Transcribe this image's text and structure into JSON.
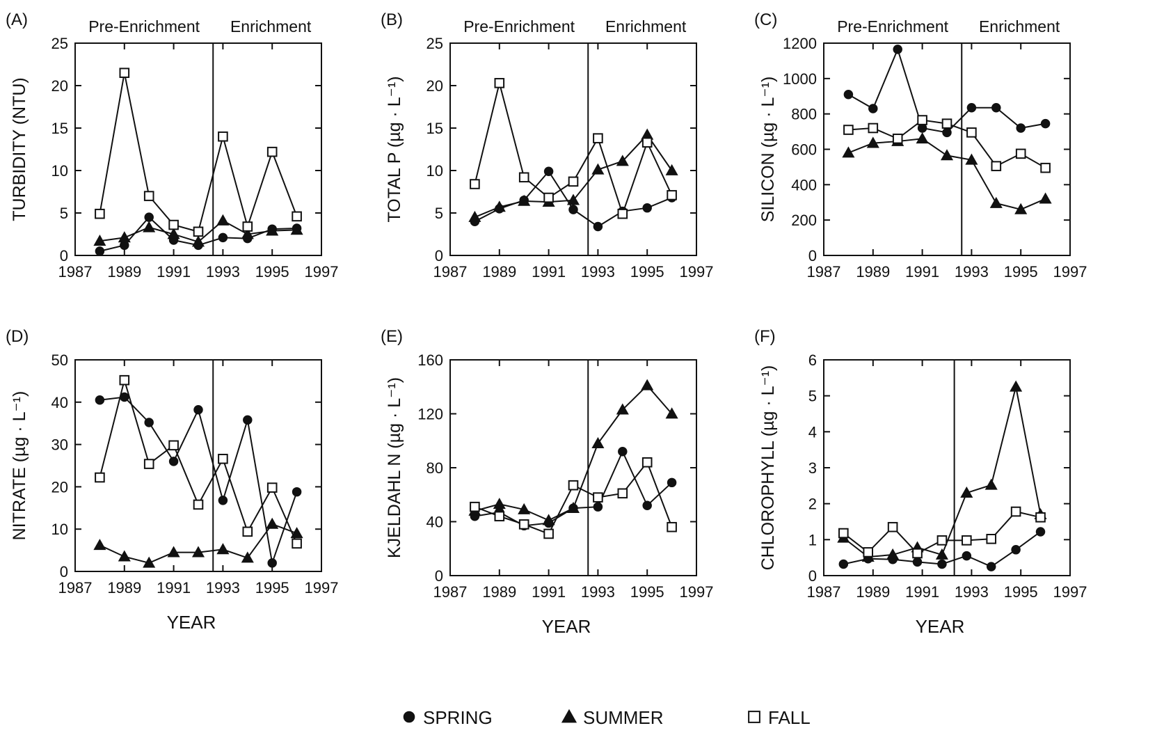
{
  "chart_data": [
    {
      "panel": "(A)",
      "type": "line",
      "ylabel": "TURBIDITY (NTU)",
      "xlabel": "",
      "xlim": [
        1987,
        1997
      ],
      "xticks": [
        "1987",
        "1989",
        "1991",
        "1993",
        "1995",
        "1997"
      ],
      "ylim": [
        0,
        25
      ],
      "yticks": [
        "0",
        "5",
        "10",
        "15",
        "20",
        "25"
      ],
      "divider_year": 1992.6,
      "period_labels": [
        "Pre-Enrichment",
        "Enrichment"
      ],
      "x": [
        1988,
        1989,
        1990,
        1991,
        1992,
        1993,
        1994,
        1995,
        1996
      ],
      "series": [
        {
          "name": "SPRING",
          "marker": "circle",
          "values": [
            0.5,
            1.2,
            4.5,
            1.8,
            1.2,
            2.1,
            2.0,
            3.1,
            3.2
          ]
        },
        {
          "name": "SUMMER",
          "marker": "triangle",
          "values": [
            1.7,
            2.1,
            3.3,
            2.5,
            1.6,
            4.1,
            2.5,
            2.9,
            3.0
          ]
        },
        {
          "name": "FALL",
          "marker": "square",
          "values": [
            4.9,
            21.5,
            7.0,
            3.6,
            2.8,
            14.0,
            3.4,
            12.2,
            4.6
          ]
        }
      ]
    },
    {
      "panel": "(B)",
      "type": "line",
      "ylabel": "TOTAL P (µg · L⁻¹)",
      "xlabel": "",
      "xlim": [
        1987,
        1997
      ],
      "xticks": [
        "1987",
        "1989",
        "1991",
        "1993",
        "1995",
        "1997"
      ],
      "ylim": [
        0,
        25
      ],
      "yticks": [
        "0",
        "5",
        "10",
        "15",
        "20",
        "25"
      ],
      "divider_year": 1992.6,
      "period_labels": [
        "Pre-Enrichment",
        "Enrichment"
      ],
      "x": [
        1988,
        1989,
        1990,
        1991,
        1992,
        1993,
        1994,
        1995,
        1996
      ],
      "series": [
        {
          "name": "SPRING",
          "marker": "circle",
          "values": [
            4.0,
            5.5,
            6.5,
            9.9,
            5.4,
            3.4,
            5.2,
            5.6,
            6.8
          ]
        },
        {
          "name": "SUMMER",
          "marker": "triangle",
          "values": [
            4.5,
            5.7,
            6.4,
            6.3,
            6.5,
            10.1,
            11.1,
            14.2,
            10.0
          ]
        },
        {
          "name": "FALL",
          "marker": "square",
          "values": [
            8.4,
            20.3,
            9.2,
            6.8,
            8.7,
            13.8,
            4.9,
            13.3,
            7.1
          ]
        }
      ]
    },
    {
      "panel": "(C)",
      "type": "line",
      "ylabel": "SILICON (µg · L⁻¹)",
      "xlabel": "",
      "xlim": [
        1987,
        1997
      ],
      "xticks": [
        "1987",
        "1989",
        "1991",
        "1993",
        "1995",
        "1997"
      ],
      "ylim": [
        0,
        1200
      ],
      "yticks": [
        "0",
        "200",
        "400",
        "600",
        "800",
        "1000",
        "1200"
      ],
      "divider_year": 1992.6,
      "period_labels": [
        "Pre-Enrichment",
        "Enrichment"
      ],
      "x": [
        1988,
        1989,
        1990,
        1991,
        1992,
        1993,
        1994,
        1995,
        1996
      ],
      "series": [
        {
          "name": "SPRING",
          "marker": "circle",
          "values": [
            910,
            830,
            1165,
            720,
            695,
            835,
            835,
            720,
            745
          ]
        },
        {
          "name": "SUMMER",
          "marker": "triangle",
          "values": [
            580,
            635,
            645,
            660,
            565,
            540,
            295,
            260,
            320
          ]
        },
        {
          "name": "FALL",
          "marker": "square",
          "values": [
            710,
            720,
            660,
            765,
            745,
            695,
            505,
            575,
            495
          ]
        }
      ]
    },
    {
      "panel": "(D)",
      "type": "line",
      "ylabel": "NITRATE (µg · L⁻¹)",
      "xlabel": "YEAR",
      "xlim": [
        1987,
        1997
      ],
      "xticks": [
        "1987",
        "1989",
        "1991",
        "1993",
        "1995",
        "1997"
      ],
      "ylim": [
        0,
        50
      ],
      "yticks": [
        "0",
        "10",
        "20",
        "30",
        "40",
        "50"
      ],
      "divider_year": 1992.6,
      "period_labels": [],
      "x": [
        1988,
        1989,
        1990,
        1991,
        1992,
        1993,
        1994,
        1995,
        1996
      ],
      "series": [
        {
          "name": "SPRING",
          "marker": "circle",
          "values": [
            40.5,
            41.2,
            35.2,
            26.0,
            38.2,
            16.8,
            35.8,
            2.0,
            18.8
          ]
        },
        {
          "name": "SUMMER",
          "marker": "triangle",
          "values": [
            6.2,
            3.5,
            2.0,
            4.5,
            4.5,
            5.2,
            3.2,
            11.2,
            9.0
          ]
        },
        {
          "name": "FALL",
          "marker": "square",
          "values": [
            22.2,
            45.2,
            25.4,
            29.8,
            15.8,
            26.6,
            9.4,
            19.8,
            6.6
          ]
        }
      ]
    },
    {
      "panel": "(E)",
      "type": "line",
      "ylabel": "KJELDAHL N (µg · L⁻¹)",
      "xlabel": "YEAR",
      "xlim": [
        1987,
        1997
      ],
      "xticks": [
        "1987",
        "1989",
        "1991",
        "1993",
        "1995",
        "1997"
      ],
      "ylim": [
        0,
        160
      ],
      "yticks": [
        "0",
        "40",
        "80",
        "120",
        "160"
      ],
      "divider_year": 1992.6,
      "period_labels": [],
      "x": [
        1988,
        1989,
        1990,
        1991,
        1992,
        1993,
        1994,
        1995,
        1996
      ],
      "series": [
        {
          "name": "SPRING",
          "marker": "circle",
          "values": [
            44,
            47,
            37,
            39,
            50,
            51,
            92,
            52,
            69
          ]
        },
        {
          "name": "SUMMER",
          "marker": "triangle",
          "values": [
            48,
            53,
            49,
            41,
            50,
            98,
            123,
            141,
            120
          ]
        },
        {
          "name": "FALL",
          "marker": "square",
          "values": [
            51,
            44,
            38,
            31,
            67,
            58,
            61,
            84,
            36
          ]
        }
      ]
    },
    {
      "panel": "(F)",
      "type": "line",
      "ylabel": "CHLOROPHYLL (µg · L⁻¹)",
      "xlabel": "YEAR",
      "xlim": [
        1987,
        1997
      ],
      "xticks": [
        "1987",
        "1989",
        "1991",
        "1993",
        "1995",
        "1997"
      ],
      "ylim": [
        0,
        6
      ],
      "yticks": [
        "0",
        "1",
        "2",
        "3",
        "4",
        "5",
        "6"
      ],
      "divider_year": 1992.3,
      "period_labels": [],
      "x": [
        1987.8,
        1988.8,
        1989.8,
        1990.8,
        1991.8,
        1992.8,
        1993.8,
        1994.8,
        1995.8
      ],
      "series": [
        {
          "name": "SPRING",
          "marker": "circle",
          "values": [
            0.32,
            0.47,
            0.45,
            0.38,
            0.32,
            0.55,
            0.25,
            0.72,
            1.22
          ]
        },
        {
          "name": "SUMMER",
          "marker": "triangle",
          "values": [
            1.05,
            0.52,
            0.58,
            0.78,
            0.58,
            2.3,
            2.52,
            5.25,
            1.7
          ]
        },
        {
          "name": "FALL",
          "marker": "square",
          "values": [
            1.18,
            0.65,
            1.35,
            0.62,
            0.98,
            0.98,
            1.02,
            1.78,
            1.62
          ]
        }
      ]
    }
  ],
  "legend": {
    "items": [
      {
        "label": "SPRING",
        "marker": "circle"
      },
      {
        "label": "SUMMER",
        "marker": "triangle"
      },
      {
        "label": "FALL",
        "marker": "square"
      }
    ]
  }
}
